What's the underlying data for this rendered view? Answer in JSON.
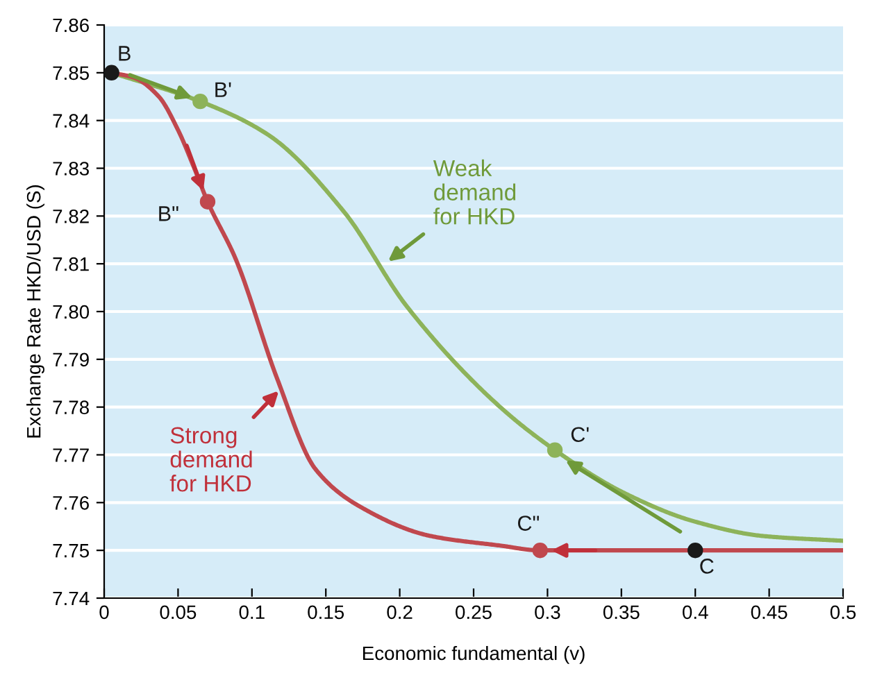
{
  "chart_data": {
    "type": "line",
    "xlabel": "Economic fundamental (v)",
    "ylabel": "Exchange Rate HKD/USD (S)",
    "xlim": [
      0,
      0.5
    ],
    "ylim": [
      7.74,
      7.86
    ],
    "xticks": [
      0,
      0.05,
      0.1,
      0.15,
      0.2,
      0.25,
      0.3,
      0.35,
      0.4,
      0.45,
      0.5
    ],
    "yticks": [
      7.74,
      7.75,
      7.76,
      7.77,
      7.78,
      7.79,
      {
        "value": 7.8,
        "label": "7.80"
      },
      7.81,
      7.82,
      7.83,
      7.84,
      7.85,
      7.86
    ],
    "grid": "y",
    "marker": "none",
    "line_style": "solid",
    "series": [
      {
        "color": "#8db35a",
        "x": [
          0.005,
          0.065,
          0.111,
          0.162,
          0.205,
          0.268,
          0.305,
          0.352,
          0.4,
          0.446,
          0.5
        ],
        "values": [
          7.85,
          7.844,
          7.837,
          7.821,
          7.801,
          7.78,
          7.771,
          7.762,
          7.756,
          7.753,
          7.752
        ]
      },
      {
        "color": "#c0484e",
        "x": [
          0.005,
          0.02,
          0.037,
          0.05,
          0.061,
          0.07,
          0.089,
          0.117,
          0.143,
          0.174,
          0.221,
          0.268,
          0.295,
          0.4,
          0.5
        ],
        "values": [
          7.85,
          7.849,
          7.845,
          7.838,
          7.83,
          7.823,
          7.811,
          7.786,
          7.767,
          7.759,
          7.753,
          7.751,
          7.75,
          7.75,
          7.75
        ]
      },
      {
        "type": "scatter",
        "marker": "circle",
        "color": "#8db35a",
        "x": [
          0.065,
          0.305
        ],
        "values": [
          7.844,
          7.771
        ]
      },
      {
        "type": "scatter",
        "marker": "circle",
        "color": "#c0484e",
        "x": [
          0.07,
          0.295
        ],
        "values": [
          7.823,
          7.75
        ]
      },
      {
        "type": "scatter",
        "marker": "circle",
        "color": "#1a1a1a",
        "x": [
          0.005,
          0.4
        ],
        "values": [
          7.85,
          7.75
        ]
      }
    ],
    "annotations": [
      {
        "text": "B",
        "x": 0.005,
        "y": 7.85
      },
      {
        "text": "B'",
        "x": 0.065,
        "y": 7.844
      },
      {
        "text": "B\"",
        "x": 0.07,
        "y": 7.823
      },
      {
        "text": "C'",
        "x": 0.305,
        "y": 7.771
      },
      {
        "text": "C\"",
        "x": 0.295,
        "y": 7.75
      },
      {
        "text": "C",
        "x": 0.4,
        "y": 7.75
      },
      {
        "text": "Weak\ndemand\nfor HKD",
        "x": 0.19,
        "y": 7.81
      },
      {
        "text": "Strong\ndemand\nfor HKD",
        "x": 0.12,
        "y": 7.784
      }
    ]
  }
}
